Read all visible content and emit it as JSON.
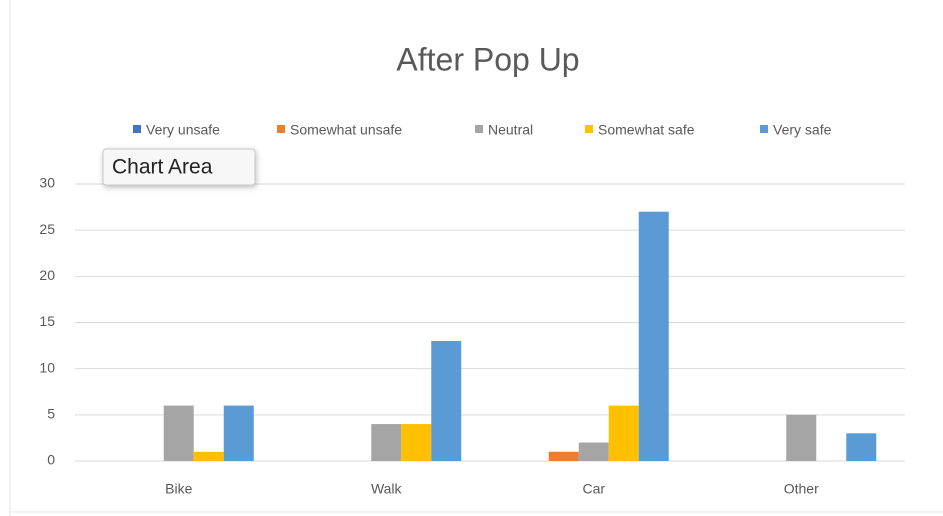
{
  "chart_data": {
    "type": "bar",
    "title": "After Pop Up",
    "categories": [
      "Bike",
      "Walk",
      "Car",
      "Other"
    ],
    "series": [
      {
        "name": "Very unsafe",
        "color": "#4472c4",
        "values": [
          0,
          0,
          0,
          0
        ]
      },
      {
        "name": "Somewhat unsafe",
        "color": "#ed7d31",
        "values": [
          0,
          0,
          1,
          0
        ]
      },
      {
        "name": "Neutral",
        "color": "#a5a5a5",
        "values": [
          6,
          4,
          2,
          5
        ]
      },
      {
        "name": "Somewhat safe",
        "color": "#ffc000",
        "values": [
          1,
          4,
          6,
          0
        ]
      },
      {
        "name": "Very safe",
        "color": "#5b9bd5",
        "values": [
          6,
          13,
          27,
          3
        ]
      }
    ],
    "ylim": [
      0,
      30
    ],
    "yticks": [
      0,
      5,
      10,
      15,
      20,
      25,
      30
    ],
    "grid": true,
    "legend": "top"
  },
  "tooltip": "Chart Area"
}
